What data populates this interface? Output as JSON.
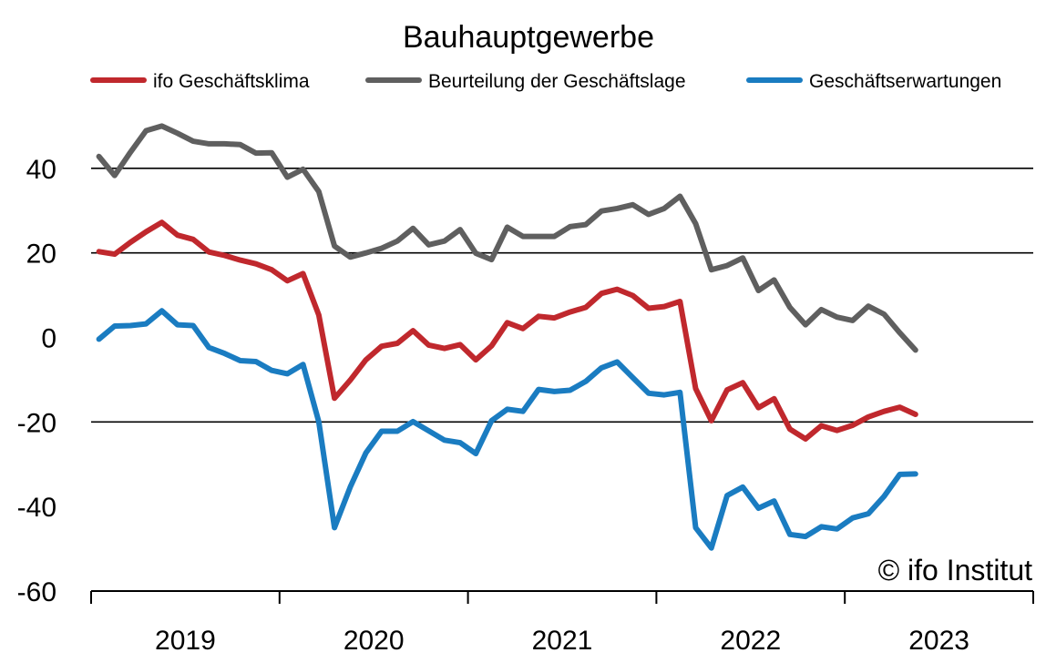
{
  "chart_data": {
    "type": "line",
    "title": "Bauhauptgewerbe",
    "xlabel": "",
    "ylabel": "",
    "ylim": [
      -60,
      60
    ],
    "yticks": [
      -60,
      -40,
      -20,
      0,
      20,
      40
    ],
    "gridlines": [
      -20,
      20,
      40
    ],
    "grid": true,
    "legend_position": "top",
    "x_start": "2019-01",
    "x_end": "2023-12",
    "x_year_labels": [
      "2019",
      "2020",
      "2021",
      "2022",
      "2023"
    ],
    "x": [
      "2019-01",
      "2019-02",
      "2019-03",
      "2019-04",
      "2019-05",
      "2019-06",
      "2019-07",
      "2019-08",
      "2019-09",
      "2019-10",
      "2019-11",
      "2019-12",
      "2020-01",
      "2020-02",
      "2020-03",
      "2020-04",
      "2020-05",
      "2020-06",
      "2020-07",
      "2020-08",
      "2020-09",
      "2020-10",
      "2020-11",
      "2020-12",
      "2021-01",
      "2021-02",
      "2021-03",
      "2021-04",
      "2021-05",
      "2021-06",
      "2021-07",
      "2021-08",
      "2021-09",
      "2021-10",
      "2021-11",
      "2021-12",
      "2022-01",
      "2022-02",
      "2022-03",
      "2022-04",
      "2022-05",
      "2022-06",
      "2022-07",
      "2022-08",
      "2022-09",
      "2022-10",
      "2022-11",
      "2022-12",
      "2023-01",
      "2023-02",
      "2023-03",
      "2023-04",
      "2023-05"
    ],
    "series": [
      {
        "name": "ifo Geschäftsklima",
        "color": "#c0282d",
        "values": [
          20.3,
          19.7,
          22.5,
          25,
          27.2,
          24.2,
          23.2,
          20.2,
          19.4,
          18.3,
          17.4,
          16,
          13.4,
          15.1,
          5.3,
          -14.4,
          -10.1,
          -5.3,
          -2.1,
          -1.4,
          1.6,
          -1.8,
          -2.6,
          -1.7,
          -5.3,
          -2,
          3.5,
          2.1,
          5,
          4.6,
          6,
          7.1,
          10.4,
          11.4,
          9.9,
          6.9,
          7.3,
          8.5,
          -12.1,
          -19.7,
          -12.4,
          -10.7,
          -16.6,
          -14.5,
          -21.7,
          -24,
          -20.9,
          -22,
          -20.8,
          -18.8,
          -17.5,
          -16.5,
          -18.2
        ]
      },
      {
        "name": "Beurteilung der Geschäftslage",
        "color": "#5f5f5f",
        "values": [
          42.8,
          38.3,
          43.8,
          48.9,
          50,
          48.3,
          46.4,
          45.8,
          45.8,
          45.6,
          43.6,
          43.7,
          37.9,
          39.8,
          34.5,
          21.6,
          19,
          20,
          21.1,
          22.8,
          25.8,
          21.9,
          22.8,
          25.5,
          19.9,
          18.4,
          26.1,
          23.9,
          23.9,
          23.9,
          26.2,
          26.7,
          29.9,
          30.5,
          31.4,
          29.1,
          30.5,
          33.4,
          26.9,
          16,
          17,
          18.8,
          11.1,
          13.6,
          7.1,
          3,
          6.6,
          4.8,
          4,
          7.4,
          5.5,
          1.1,
          -3
        ]
      },
      {
        "name": "Geschäftserwartungen",
        "color": "#1a7cc1",
        "values": [
          -0.4,
          2.7,
          2.8,
          3.2,
          6.3,
          3,
          2.8,
          -2.4,
          -3.8,
          -5.5,
          -5.7,
          -7.8,
          -8.6,
          -6.4,
          -20,
          -45,
          -35.4,
          -27.3,
          -22.2,
          -22.2,
          -19.9,
          -22.1,
          -24.3,
          -24.9,
          -27.5,
          -19.7,
          -17,
          -17.5,
          -12.3,
          -12.8,
          -12.5,
          -10.4,
          -7.2,
          -5.8,
          -9.5,
          -13.2,
          -13.6,
          -13,
          -45,
          -49.8,
          -37.4,
          -35.4,
          -40.4,
          -38.7,
          -46.6,
          -47.1,
          -44.8,
          -45.3,
          -42.7,
          -41.7,
          -37.6,
          -32.4,
          -32.3
        ]
      }
    ],
    "annotation": "© ifo Institut"
  }
}
